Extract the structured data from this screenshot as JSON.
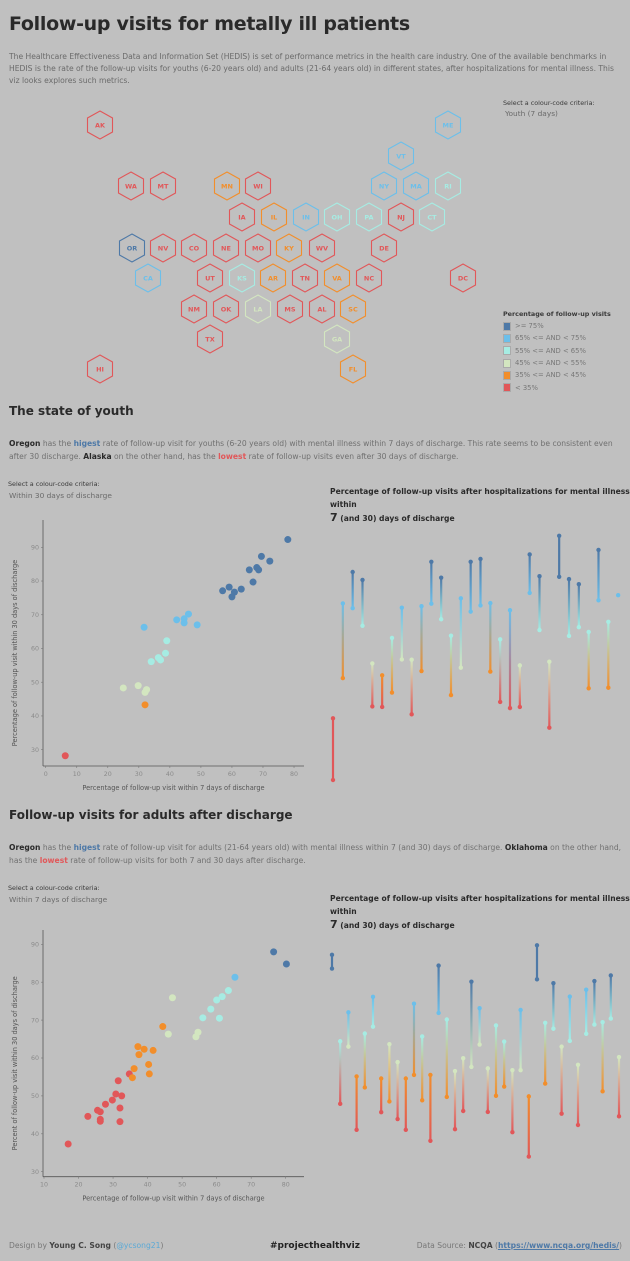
{
  "header": {
    "title": "Follow-up visits for metally ill patients",
    "intro": "The Healthcare Effectiveness Data and Information Set (HEDIS) is set of performance metrics in the health care industry.   One of the available benchmarks in HEDIS is the rate of the follow-up visits for youths (6-20 years old) and adults (21-64 years old) in different states, after hospitalizations for mental illness.  This viz looks explores such metrics."
  },
  "map": {
    "criteria_label": "Select a colour-code criteria:",
    "criteria_value": "Youth (7 days)",
    "states": [
      {
        "abbr": "AK",
        "cat": 5
      },
      {
        "abbr": "ME",
        "cat": 1
      },
      {
        "abbr": "VT",
        "cat": 1
      },
      {
        "abbr": "WA",
        "cat": 5
      },
      {
        "abbr": "MT",
        "cat": 5
      },
      {
        "abbr": "MN",
        "cat": 4
      },
      {
        "abbr": "WI",
        "cat": 5
      },
      {
        "abbr": "NY",
        "cat": 1
      },
      {
        "abbr": "MA",
        "cat": 1
      },
      {
        "abbr": "RI",
        "cat": 2
      },
      {
        "abbr": "IA",
        "cat": 5
      },
      {
        "abbr": "IL",
        "cat": 4
      },
      {
        "abbr": "IN",
        "cat": 1
      },
      {
        "abbr": "OH",
        "cat": 2
      },
      {
        "abbr": "PA",
        "cat": 2
      },
      {
        "abbr": "NJ",
        "cat": 5
      },
      {
        "abbr": "CT",
        "cat": 2
      },
      {
        "abbr": "OR",
        "cat": 0
      },
      {
        "abbr": "NV",
        "cat": 5
      },
      {
        "abbr": "CO",
        "cat": 5
      },
      {
        "abbr": "NE",
        "cat": 5
      },
      {
        "abbr": "MO",
        "cat": 5
      },
      {
        "abbr": "KY",
        "cat": 4
      },
      {
        "abbr": "WV",
        "cat": 5
      },
      {
        "abbr": "DE",
        "cat": 5
      },
      {
        "abbr": "CA",
        "cat": 1
      },
      {
        "abbr": "UT",
        "cat": 5
      },
      {
        "abbr": "KS",
        "cat": 2
      },
      {
        "abbr": "AR",
        "cat": 4
      },
      {
        "abbr": "TN",
        "cat": 5
      },
      {
        "abbr": "VA",
        "cat": 4
      },
      {
        "abbr": "NC",
        "cat": 5
      },
      {
        "abbr": "DC",
        "cat": 5
      },
      {
        "abbr": "NM",
        "cat": 5
      },
      {
        "abbr": "OK",
        "cat": 5
      },
      {
        "abbr": "LA",
        "cat": 3
      },
      {
        "abbr": "MS",
        "cat": 5
      },
      {
        "abbr": "AL",
        "cat": 5
      },
      {
        "abbr": "SC",
        "cat": 4
      },
      {
        "abbr": "TX",
        "cat": 5
      },
      {
        "abbr": "GA",
        "cat": 3
      },
      {
        "abbr": "HI",
        "cat": 5
      },
      {
        "abbr": "FL",
        "cat": 4
      }
    ]
  },
  "legend": {
    "title": "Percentage of follow-up visits",
    "items": [
      {
        "label": ">= 75%",
        "color": "#4e79a7"
      },
      {
        "label": "65% <= AND < 75%",
        "color": "#6cbfea"
      },
      {
        "label": "55% <= AND < 65%",
        "color": "#a6ece3"
      },
      {
        "label": "45% <= AND < 55%",
        "color": "#d3e6c0"
      },
      {
        "label": "35% <= AND < 45%",
        "color": "#f28e2b"
      },
      {
        "label": "< 35%",
        "color": "#e15759"
      }
    ]
  },
  "youth": {
    "heading": "The state of youth",
    "p": {
      "s1": "Oregon",
      "s2": " has the ",
      "s3": "higest",
      "s4": " rate of follow-up visit for youths (6-20 years old) with mental illness within 7 days of discharge.  This rate seems to be consistent even after 30 discharge.  ",
      "s5": "Alaska",
      "s6": " on the other hand, has the ",
      "s7": "lowest",
      "s8": " rate of follow-up visits even after 30 days of discharge."
    },
    "criteria_label": "Select a colour-code criteria:",
    "criteria_value": "Within 30 days of discharge",
    "chart_title_a": "Percentage of follow-up visits after hospitalizations for mental illness within",
    "chart_title_b": "7",
    "chart_title_c": " (and 30) days of discharge"
  },
  "adult": {
    "heading": "Follow-up visits for adults after discharge",
    "p": {
      "s1": "Oregon",
      "s2": " has the ",
      "s3": "higest",
      "s4": " rate of follow-up visit for adults (21-64 years old) with mental illness within 7 (and 30) days of discharge. ",
      "s5": "Oklahoma",
      "s6": " on the other hand, has the ",
      "s7": "lowest",
      "s8": " rate of follow-up visits for both 7 and 30 days after discharge."
    },
    "criteria_label": "Select a colour-code criteria:",
    "criteria_value": "Within 7 days of discharge",
    "chart_title_a": "Percentage of follow-up visits after hospitalizations for mental illness within",
    "chart_title_b": "7",
    "chart_title_c": " (and 30) days of discharge"
  },
  "footer": {
    "design_prefix": "Design by ",
    "designer": "Young C. Song",
    "handle_open": " (",
    "handle": "@ycsong21",
    "handle_close": ")",
    "hashtag": "#projecthealthviz",
    "source_prefix": "Data Source: ",
    "source": "NCQA",
    "source_open": " (",
    "source_url": "https://www.ncqa.org/hedis/",
    "source_close": ")"
  },
  "chart_data": [
    {
      "type": "scatter",
      "id": "youth-scatter",
      "xlabel": "Percentage of follow-up visit within 7 days of discharge",
      "ylabel": "Percentage of follow-up visit within 30 days of discharge",
      "xlim": [
        0,
        83
      ],
      "ylim": [
        25,
        97
      ],
      "xticks": [
        "0",
        "10",
        "20",
        "30",
        "40",
        "50",
        "60",
        "70",
        "80"
      ],
      "yticks": [
        "30",
        "40",
        "50",
        "60",
        "70",
        "80",
        "90"
      ],
      "color_by": "y",
      "grid": false,
      "points": [
        [
          6.3,
          28.2
        ],
        [
          32,
          43.3
        ],
        [
          25,
          48.3
        ],
        [
          29.8,
          49
        ],
        [
          32,
          47
        ],
        [
          32.5,
          47.8
        ],
        [
          34,
          56.1
        ],
        [
          36.3,
          57.3
        ],
        [
          37,
          56.6
        ],
        [
          38.6,
          58.6
        ],
        [
          39,
          62.3
        ],
        [
          31.7,
          66.3
        ],
        [
          42.2,
          68.5
        ],
        [
          44.6,
          68.8
        ],
        [
          44.6,
          67.6
        ],
        [
          46,
          70.2
        ],
        [
          48.8,
          67
        ],
        [
          57,
          77.1
        ],
        [
          59.1,
          78.2
        ],
        [
          60,
          75.3
        ],
        [
          60.8,
          76.7
        ],
        [
          63,
          77.6
        ],
        [
          65.6,
          83.3
        ],
        [
          66.8,
          79.7
        ],
        [
          68,
          84
        ],
        [
          68.6,
          83.3
        ],
        [
          69.5,
          87.3
        ],
        [
          72.2,
          85.9
        ],
        [
          78,
          92.3
        ]
      ]
    },
    {
      "type": "dumbbell",
      "id": "youth-dumbbell",
      "series": [
        {
          "name": "7",
          "values": [
            6.3,
            42.3,
            67.0,
            60.8,
            32.3,
            32.1,
            37.2,
            48.9,
            29.5,
            44.8,
            68.6,
            63.1,
            36.3,
            46.0,
            65.8,
            68.0,
            44.6,
            33.9,
            31.7,
            32.1,
            72.4,
            59.3,
            24.8,
            78.1,
            57.2,
            60.3,
            38.7,
            69.8,
            38.9,
            null
          ]
        },
        {
          "name": "30",
          "values": [
            28.1,
            68.7,
            79.8,
            77.0,
            47.5,
            43.3,
            56.5,
            67.2,
            48.8,
            67.7,
            83.4,
            77.8,
            57.3,
            70.5,
            83.4,
            84.4,
            68.8,
            56.0,
            66.3,
            46.8,
            86.0,
            78.3,
            48.1,
            92.6,
            77.3,
            75.5,
            58.6,
            87.6,
            62.2,
            71.6
          ]
        }
      ]
    },
    {
      "type": "scatter",
      "id": "adult-scatter",
      "xlabel": "Percentage of follow-up visit within 7 days of discharge",
      "ylabel": "Percent of follow-up visit within 30 days of discharge",
      "xlim": [
        10,
        85
      ],
      "ylim": [
        28,
        93
      ],
      "xticks": [
        "10",
        "20",
        "30",
        "40",
        "50",
        "60",
        "70",
        "80"
      ],
      "yticks": [
        "30",
        "40",
        "50",
        "60",
        "70",
        "80",
        "90"
      ],
      "color_by": "x",
      "grid": false,
      "points": [
        [
          17,
          37.3
        ],
        [
          22.7,
          44.6
        ],
        [
          25.5,
          46.2
        ],
        [
          26.3,
          45.8
        ],
        [
          26.3,
          43.8
        ],
        [
          26.3,
          43.3
        ],
        [
          27.8,
          47.8
        ],
        [
          29.8,
          48.9
        ],
        [
          30.8,
          50.5
        ],
        [
          31.5,
          54
        ],
        [
          32,
          46.8
        ],
        [
          32,
          43.2
        ],
        [
          32.5,
          50
        ],
        [
          34.7,
          55.8
        ],
        [
          35.6,
          54.8
        ],
        [
          36.1,
          57.2
        ],
        [
          37.2,
          63
        ],
        [
          37.5,
          60.9
        ],
        [
          39,
          62.3
        ],
        [
          40.3,
          58.3
        ],
        [
          40.5,
          55.8
        ],
        [
          41.6,
          62
        ],
        [
          44.4,
          68.3
        ],
        [
          46,
          66.3
        ],
        [
          47.2,
          75.9
        ],
        [
          54,
          65.6
        ],
        [
          54.6,
          66.8
        ],
        [
          56,
          70.6
        ],
        [
          58.3,
          72.9
        ],
        [
          60,
          75.3
        ],
        [
          60.8,
          70.5
        ],
        [
          61.6,
          76.2
        ],
        [
          63.4,
          77.8
        ],
        [
          65.3,
          81.3
        ],
        [
          76.5,
          88
        ],
        [
          80.2,
          84.8
        ]
      ]
    },
    {
      "type": "dumbbell",
      "id": "adult-dumbbell",
      "series": [
        {
          "name": "7",
          "values": [
            80.2,
            34.8,
            54.0,
            26.1,
            40.3,
            60.7,
            32.0,
            35.6,
            29.7,
            26.1,
            44.5,
            36.0,
            22.4,
            65.3,
            37.1,
            26.3,
            32.4,
            47.2,
            54.7,
            32.1,
            37.5,
            40.6,
            25.3,
            46.1,
            17.1,
            76.6,
            41.6,
            60.0,
            31.5,
            55.9,
            27.7,
            58.3,
            61.4,
            39.0,
            63.4,
            30.6
          ]
        },
        {
          "name": "30",
          "values": [
            84.8,
            55.8,
            65.5,
            44.0,
            58.4,
            70.7,
            43.3,
            54.8,
            48.8,
            43.3,
            68.4,
            57.4,
            44.5,
            81.2,
            63.1,
            45.8,
            50.1,
            75.8,
            66.9,
            46.7,
            61.1,
            55.7,
            46.1,
            66.3,
            37.3,
            88.0,
            62.0,
            75.3,
            54.0,
            70.8,
            47.9,
            73.1,
            76.0,
            62.2,
            77.9,
            50.5
          ]
        }
      ]
    }
  ]
}
